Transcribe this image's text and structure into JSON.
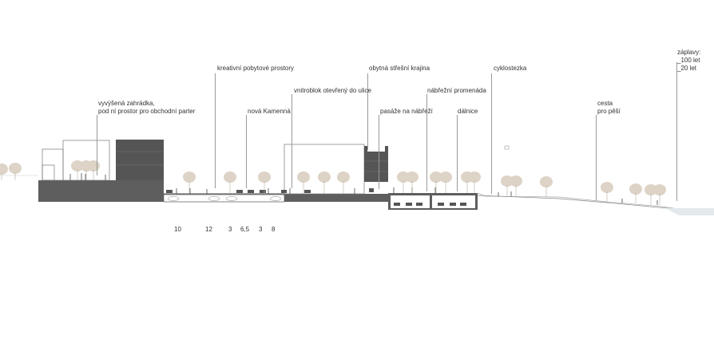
{
  "colors": {
    "mass": "#5e5e5e",
    "mass_dark": "#555555",
    "tree": "#ddd3c6",
    "water": "#e3e9ec",
    "leader": "#9a9a9a",
    "text": "#333333"
  },
  "labels": {
    "zaplavy": "záplavy:",
    "let100": "_100 let",
    "let20": "_20 let",
    "kreativni": "kreativní pobytové prostory",
    "obytna": "obytná střešní krajina",
    "cyklostezka": "cyklostezka",
    "vnitroblok": "vnitroblok otevřený do ulice",
    "nabrezni": "nábřežní promenáda",
    "vyvysena": "vyvýšená zahrádka,",
    "pod_ni": "pod ní prostor pro obchodní parter",
    "nova_kamenna": "nová Kamenná",
    "pasaze": "pasáže na nábřeží",
    "dalnice": "dálnice",
    "cesta": "cesta",
    "pro_pesi": "pro pěší"
  },
  "dimensions": [
    "10",
    "12",
    "3",
    "6,5",
    "3",
    "8"
  ]
}
